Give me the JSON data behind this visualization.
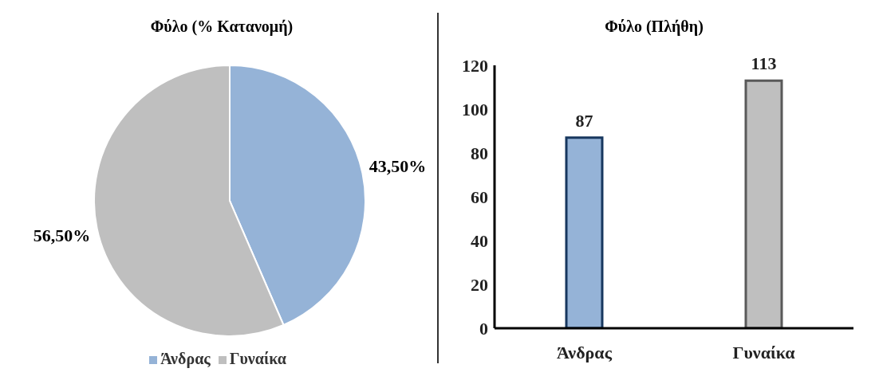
{
  "chart_data": [
    {
      "type": "pie",
      "title": "Φύλο (% Κατανομή)",
      "categories": [
        "Άνδρας",
        "Γυναίκα"
      ],
      "values": [
        43.5,
        56.5
      ],
      "value_labels": [
        "43,50%",
        "56,50%"
      ],
      "colors": [
        "#95b3d7",
        "#bfbfbf"
      ],
      "legend": "bottom"
    },
    {
      "type": "bar",
      "title": "Φύλο (Πλήθη)",
      "categories": [
        "Άνδρας",
        "Γυναίκα"
      ],
      "values": [
        87,
        113
      ],
      "colors": [
        "#95b3d7",
        "#bfbfbf"
      ],
      "ylim": [
        0,
        120
      ],
      "yticks": [
        0,
        20,
        40,
        60,
        80,
        100,
        120
      ],
      "data_labels": true,
      "grid": false
    }
  ]
}
